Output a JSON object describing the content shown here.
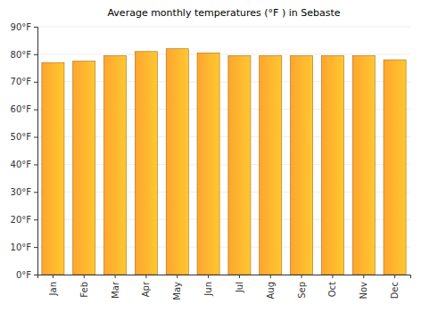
{
  "chart_data": {
    "type": "bar",
    "title": "Average monthly temperatures (°F ) in Sebaste",
    "categories": [
      "Jan",
      "Feb",
      "Mar",
      "Apr",
      "May",
      "Jun",
      "Jul",
      "Aug",
      "Sep",
      "Oct",
      "Nov",
      "Dec"
    ],
    "values": [
      77,
      77.5,
      79.5,
      81,
      82,
      80.5,
      79.5,
      79.5,
      79.5,
      79.5,
      79.5,
      78
    ],
    "color": "#ffa52f",
    "ylim": [
      0,
      90
    ],
    "yticks": [
      {
        "value": 0,
        "label": "0°F"
      },
      {
        "value": 10,
        "label": "10°F"
      },
      {
        "value": 20,
        "label": "20°F"
      },
      {
        "value": 30,
        "label": "30°F"
      },
      {
        "value": 40,
        "label": "40°F"
      },
      {
        "value": 50,
        "label": "50°F"
      },
      {
        "value": 60,
        "label": "60°F"
      },
      {
        "value": 70,
        "label": "70°F"
      },
      {
        "value": 80,
        "label": "80°F"
      },
      {
        "value": 90,
        "label": "90°F"
      }
    ],
    "grid": true
  }
}
